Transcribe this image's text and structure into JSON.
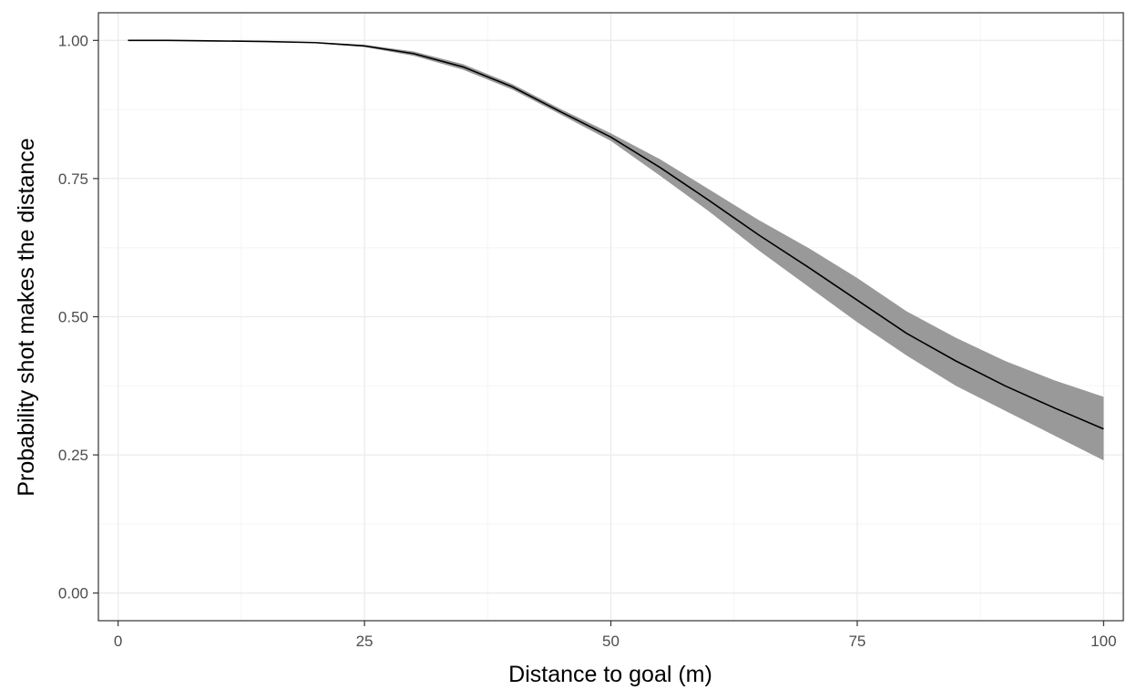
{
  "chart_data": {
    "type": "line",
    "title": "",
    "xlabel": "Distance to goal (m)",
    "ylabel": "Probability shot makes the distance",
    "xlim": [
      -2,
      102
    ],
    "ylim": [
      -0.05,
      1.05
    ],
    "x_ticks": [
      0,
      25,
      50,
      75,
      100
    ],
    "x_tick_labels": [
      "0",
      "25",
      "50",
      "75",
      "100"
    ],
    "y_ticks": [
      0,
      0.25,
      0.5,
      0.75,
      1
    ],
    "y_tick_labels": [
      "0.00",
      "0.25",
      "0.50",
      "0.75",
      "1.00"
    ],
    "grid": true,
    "legend": "none",
    "series": [
      {
        "x": [
          1,
          5,
          10,
          15,
          20,
          25,
          30,
          35,
          40,
          45,
          50,
          55,
          60,
          65,
          70,
          75,
          80,
          85,
          90,
          95,
          100
        ],
        "y": [
          1.0,
          1.0,
          0.999,
          0.998,
          0.996,
          0.99,
          0.976,
          0.952,
          0.916,
          0.87,
          0.825,
          0.77,
          0.71,
          0.648,
          0.59,
          0.53,
          0.47,
          0.42,
          0.375,
          0.335,
          0.297
        ],
        "lower": [
          1.0,
          1.0,
          0.999,
          0.998,
          0.995,
          0.988,
          0.972,
          0.947,
          0.911,
          0.865,
          0.818,
          0.755,
          0.69,
          0.62,
          0.555,
          0.49,
          0.43,
          0.375,
          0.33,
          0.285,
          0.24
        ],
        "upper": [
          1.0,
          1.0,
          0.999,
          0.998,
          0.997,
          0.992,
          0.98,
          0.957,
          0.921,
          0.875,
          0.832,
          0.785,
          0.73,
          0.675,
          0.625,
          0.57,
          0.51,
          0.462,
          0.42,
          0.385,
          0.355
        ]
      }
    ],
    "colors": {
      "line": "#000000",
      "band": "#999999",
      "grid_major": "#ebebeb",
      "grid_minor": "#f5f5f5",
      "panel_border": "#333333",
      "background": "#ffffff"
    }
  }
}
